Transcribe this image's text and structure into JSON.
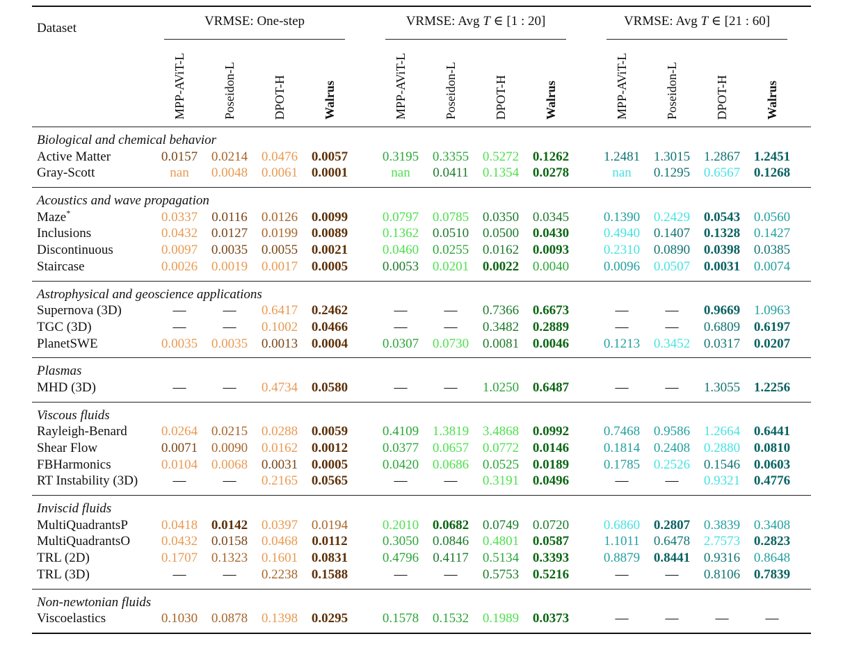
{
  "header": {
    "dataset_label": "Dataset",
    "groups": [
      {
        "prefix": "VRMSE: One-step",
        "var": "",
        "suffix": ""
      },
      {
        "prefix": "VRMSE: Avg ",
        "var": "T",
        "suffix": " ∈ [1 : 20]"
      },
      {
        "prefix": "VRMSE: Avg ",
        "var": "T",
        "suffix": " ∈ [21 : 60]"
      }
    ],
    "models": [
      "MPP-AViT-L",
      "Poseidon-L",
      "DPOT-H",
      "Walrus"
    ],
    "bold_model": "Walrus"
  },
  "colors": {
    "one_step": {
      "l": "#e99a52",
      "m": "#a8652a",
      "d": "#7a4516",
      "b": "#5e3109"
    },
    "avg_1_20": {
      "l": "#4fe04f",
      "m": "#2aa637",
      "d": "#1a7a2a",
      "b": "#0d6614"
    },
    "avg_21_60": {
      "l": "#48e2e2",
      "m": "#24a0a0",
      "d": "#127474",
      "b": "#0a6262"
    },
    "dash": "#111111"
  },
  "sections": [
    {
      "title": "Biological and chemical behavior",
      "rows": [
        {
          "name": "Active Matter",
          "sup": "",
          "values": [
            "0.0157",
            "0.0214",
            "0.0476",
            "0.0057",
            "0.3195",
            "0.3355",
            "0.5272",
            "0.1262",
            "1.2481",
            "1.3015",
            "1.2867",
            "1.2451"
          ],
          "shades": "dmlbmmlbdddb"
        },
        {
          "name": "Gray-Scott",
          "sup": "",
          "values": [
            "nan",
            "0.0048",
            "0.0061",
            "0.0001",
            "nan",
            "0.0411",
            "0.1354",
            "0.0278",
            "nan",
            "0.1295",
            "0.6567",
            "0.1268"
          ],
          "shades": "lllbldlbldlb"
        }
      ]
    },
    {
      "title": "Acoustics and wave propagation",
      "rows": [
        {
          "name": "Maze",
          "sup": "*",
          "values": [
            "0.0337",
            "0.0116",
            "0.0126",
            "0.0099",
            "0.0797",
            "0.0785",
            "0.0350",
            "0.0345",
            "0.1390",
            "0.2429",
            "0.0543",
            "0.0560"
          ],
          "shades": "ldmbllddmlbm"
        },
        {
          "name": "Inclusions",
          "sup": "",
          "values": [
            "0.0432",
            "0.0127",
            "0.0199",
            "0.0089",
            "0.1362",
            "0.0510",
            "0.0500",
            "0.0430",
            "0.4940",
            "0.1407",
            "0.1328",
            "0.1427"
          ],
          "shades": "ldmblddbldbm"
        },
        {
          "name": "Discontinuous",
          "sup": "",
          "values": [
            "0.0097",
            "0.0035",
            "0.0055",
            "0.0021",
            "0.0460",
            "0.0255",
            "0.0162",
            "0.0093",
            "0.2310",
            "0.0890",
            "0.0398",
            "0.0385"
          ],
          "shades": "lddblmdbldbd"
        },
        {
          "name": "Staircase",
          "sup": "",
          "values": [
            "0.0026",
            "0.0019",
            "0.0017",
            "0.0005",
            "0.0053",
            "0.0201",
            "0.0022",
            "0.0040",
            "0.0096",
            "0.0507",
            "0.0031",
            "0.0074"
          ],
          "shades": "lllbdlbmmlbm"
        }
      ]
    },
    {
      "title": "Astrophysical and geoscience applications",
      "rows": [
        {
          "name": "Supernova (3D)",
          "sup": "",
          "values": [
            "—",
            "—",
            "0.6417",
            "0.2462",
            "—",
            "—",
            "0.7366",
            "0.6673",
            "—",
            "—",
            "0.9669",
            "1.0963"
          ],
          "shades": "kklbkkdbkkbm"
        },
        {
          "name": "TGC (3D)",
          "sup": "",
          "values": [
            "—",
            "—",
            "0.1002",
            "0.0466",
            "—",
            "—",
            "0.3482",
            "0.2889",
            "—",
            "—",
            "0.6809",
            "0.6197"
          ],
          "shades": "kklbkkdbkkdb"
        },
        {
          "name": "PlanetSWE",
          "sup": "",
          "values": [
            "0.0035",
            "0.0035",
            "0.0013",
            "0.0004",
            "0.0307",
            "0.0730",
            "0.0081",
            "0.0046",
            "0.1213",
            "0.3452",
            "0.0317",
            "0.0207"
          ],
          "shades": "lldbmldbmldb"
        }
      ]
    },
    {
      "title": "Plasmas",
      "rows": [
        {
          "name": "MHD (3D)",
          "sup": "",
          "values": [
            "—",
            "—",
            "0.4734",
            "0.0580",
            "—",
            "—",
            "1.0250",
            "0.6487",
            "—",
            "—",
            "1.3055",
            "1.2256"
          ],
          "shades": "kklbkkmbkkdb"
        }
      ]
    },
    {
      "title": "Viscous fluids",
      "rows": [
        {
          "name": "Rayleigh-Benard",
          "sup": "",
          "values": [
            "0.0264",
            "0.0215",
            "0.0288",
            "0.0059",
            "0.4109",
            "1.3819",
            "3.4868",
            "0.0992",
            "0.7468",
            "0.9586",
            "1.2664",
            "0.6441"
          ],
          "shades": "lmlbmllbmmlb"
        },
        {
          "name": "Shear Flow",
          "sup": "",
          "values": [
            "0.0071",
            "0.0090",
            "0.0162",
            "0.0012",
            "0.0377",
            "0.0657",
            "0.0772",
            "0.0146",
            "0.1814",
            "0.2408",
            "0.2880",
            "0.0810"
          ],
          "shades": "dmlbmllbmmlb"
        },
        {
          "name": "FBHarmonics",
          "sup": "",
          "values": [
            "0.0104",
            "0.0068",
            "0.0031",
            "0.0005",
            "0.0420",
            "0.0686",
            "0.0525",
            "0.0189",
            "0.1785",
            "0.2526",
            "0.1546",
            "0.0603"
          ],
          "shades": "lldbmlmbmldb"
        },
        {
          "name": "RT Instability (3D)",
          "sup": "",
          "values": [
            "—",
            "—",
            "0.2165",
            "0.0565",
            "—",
            "—",
            "0.3191",
            "0.0496",
            "—",
            "—",
            "0.9321",
            "0.4776"
          ],
          "shades": "kklbkklbkklb"
        }
      ]
    },
    {
      "title": "Inviscid fluids",
      "rows": [
        {
          "name": "MultiQuadrantsP",
          "sup": "",
          "values": [
            "0.0418",
            "0.0142",
            "0.0397",
            "0.0194",
            "0.2010",
            "0.0682",
            "0.0749",
            "0.0720",
            "0.6860",
            "0.2807",
            "0.3839",
            "0.3408"
          ],
          "shades": "lblmlbddlbmm"
        },
        {
          "name": "MultiQuadrantsO",
          "sup": "",
          "values": [
            "0.0432",
            "0.0158",
            "0.0468",
            "0.0112",
            "0.3050",
            "0.0846",
            "0.4801",
            "0.0587",
            "1.1011",
            "0.6478",
            "2.7573",
            "0.2823"
          ],
          "shades": "ldlbmdlbmdlb"
        },
        {
          "name": "TRL (2D)",
          "sup": "",
          "values": [
            "0.1707",
            "0.1323",
            "0.1601",
            "0.0831",
            "0.4796",
            "0.4117",
            "0.5134",
            "0.3393",
            "0.8879",
            "0.8441",
            "0.9316",
            "0.8648"
          ],
          "shades": "lmlbmdmbmbdm"
        },
        {
          "name": "TRL (3D)",
          "sup": "",
          "values": [
            "—",
            "—",
            "0.2238",
            "0.1588",
            "—",
            "—",
            "0.5753",
            "0.5216",
            "—",
            "—",
            "0.8106",
            "0.7839"
          ],
          "shades": "kkmbkkdbkkdb"
        }
      ]
    },
    {
      "title": "Non-newtonian fluids",
      "rows": [
        {
          "name": "Viscoelastics",
          "sup": "",
          "values": [
            "0.1030",
            "0.0878",
            "0.1398",
            "0.0295",
            "0.1578",
            "0.1532",
            "0.1989",
            "0.0373",
            "—",
            "—",
            "—",
            "—"
          ],
          "shades": "mmlbmmlbkkkk"
        }
      ]
    }
  ]
}
